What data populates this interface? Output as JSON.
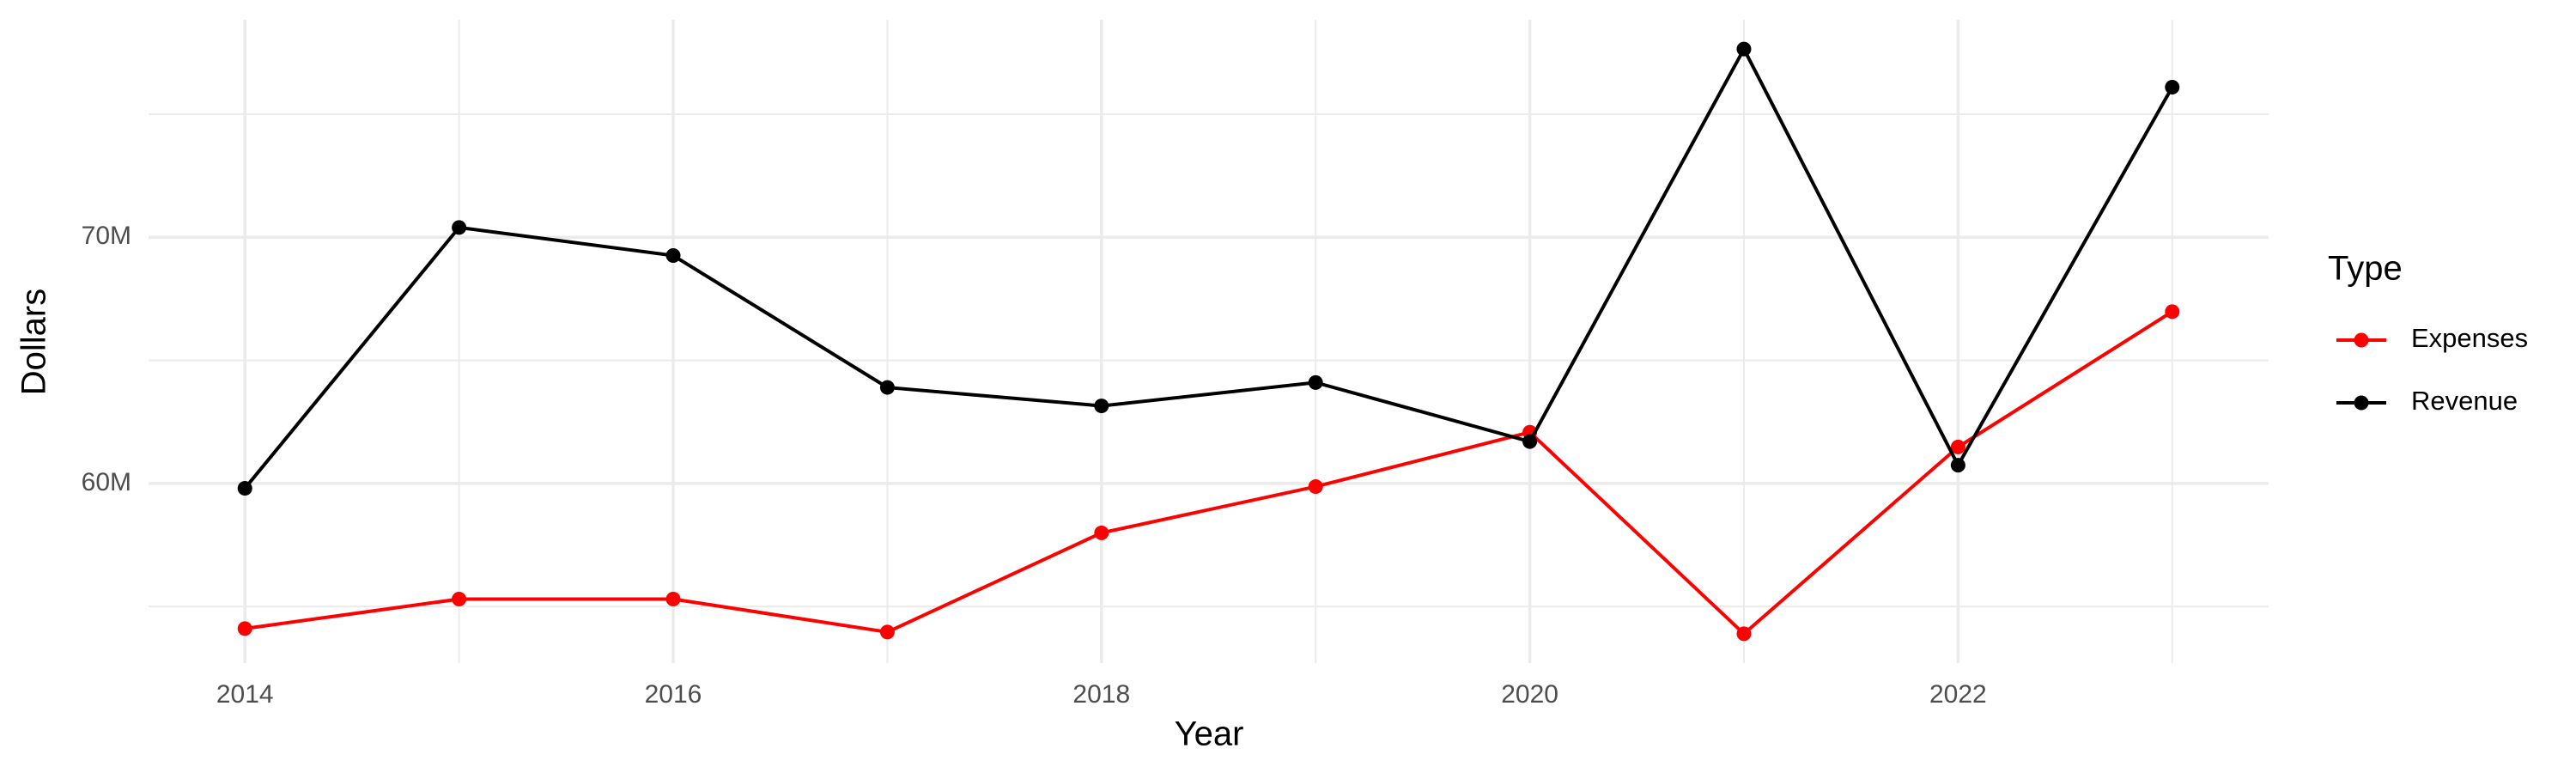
{
  "chart_data": {
    "type": "line",
    "x_label": "Year",
    "y_label": "Dollars",
    "x": [
      2014,
      2015,
      2016,
      2017,
      2018,
      2019,
      2020,
      2021,
      2022,
      2023
    ],
    "series": [
      {
        "name": "Expenses",
        "color": "#ff0000",
        "values": [
          54100000,
          55300000,
          55300000,
          53960000,
          57990000,
          59870000,
          62080000,
          53890000,
          61480000,
          66980000
        ]
      },
      {
        "name": "Revenue",
        "color": "#000000",
        "values": [
          59800000,
          70400000,
          69260000,
          63900000,
          63150000,
          64100000,
          61700000,
          77650000,
          60740000,
          76100000
        ]
      }
    ],
    "xlim": [
      2013.55,
      2023.45
    ],
    "xticks": [
      2014,
      2016,
      2018,
      2020,
      2022
    ],
    "ylim": [
      52700000,
      78840000
    ],
    "yticks": [
      {
        "value": 60000000,
        "label": "60M"
      },
      {
        "value": 70000000,
        "label": "70M"
      }
    ],
    "grid": true,
    "legend_title": "Type",
    "legend_position": "right"
  }
}
